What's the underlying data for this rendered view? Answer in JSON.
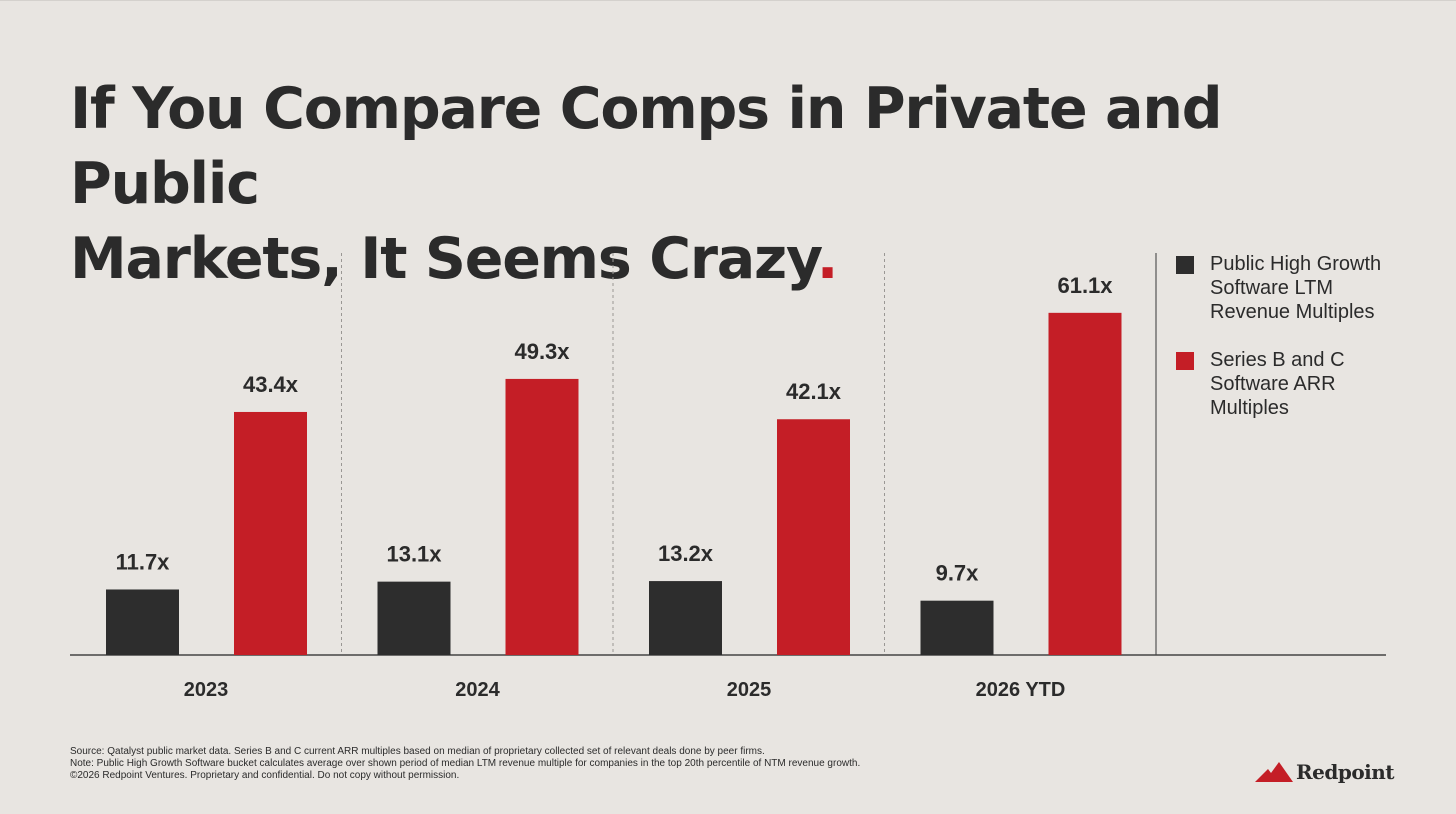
{
  "title": {
    "line1": "If You Compare Comps in Private and Public",
    "line2": "Markets, It Seems Crazy",
    "period": "."
  },
  "colors": {
    "background": "#e8e5e1",
    "public": "#2d2d2d",
    "private": "#c41e26",
    "text": "#2b2b2b"
  },
  "chart_data": {
    "type": "bar",
    "categories": [
      "2023",
      "2024",
      "2025",
      "2026 YTD"
    ],
    "series": [
      {
        "name": "Public High Growth Software LTM Revenue Multiples",
        "values": [
          11.7,
          13.1,
          13.2,
          9.7
        ],
        "color": "#2d2d2d"
      },
      {
        "name": "Series B and C Software ARR Multiples",
        "values": [
          43.4,
          49.3,
          42.1,
          61.1
        ],
        "color": "#c41e26"
      }
    ],
    "data_labels": [
      [
        "11.7x",
        "13.1x",
        "13.2x",
        "9.7x"
      ],
      [
        "43.4x",
        "49.3x",
        "42.1x",
        "61.1x"
      ]
    ],
    "value_suffix": "x",
    "ylim": [
      0,
      70
    ],
    "grid": false,
    "legend_position": "right",
    "title": "",
    "xlabel": "",
    "ylabel": ""
  },
  "legend": {
    "items": [
      {
        "label": "Public High Growth Software LTM Revenue Multiples",
        "color": "#2d2d2d"
      },
      {
        "label": "Series B and C Software ARR Multiples",
        "color": "#c41e26"
      }
    ]
  },
  "footnotes": {
    "source": "Source: Qatalyst public market data. Series B and C current ARR multiples based on median of proprietary collected set of relevant deals done by peer firms.",
    "note": "Note: Public High Growth Software bucket calculates average over shown period of median LTM revenue multiple for companies in the top 20th percentile of NTM revenue growth.",
    "copyright": "©2026 Redpoint Ventures. Proprietary and confidential. Do not copy without permission."
  },
  "logo": {
    "text": "Redpoint",
    "icon": "mountain-logo-icon"
  }
}
